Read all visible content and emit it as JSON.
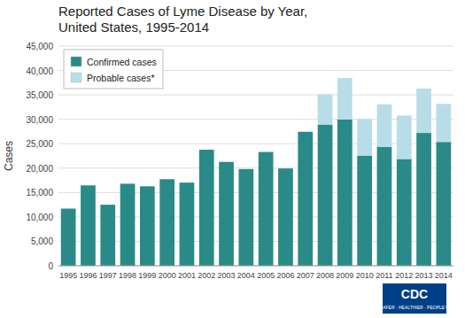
{
  "chart_data": {
    "type": "bar",
    "stacked": true,
    "title": "Reported Cases of Lyme Disease by Year,",
    "subtitle": "United States, 1995-2014",
    "ylabel": "Cases",
    "categories": [
      "1995",
      "1996",
      "1997",
      "1998",
      "1999",
      "2000",
      "2001",
      "2002",
      "2003",
      "2004",
      "2005",
      "2006",
      "2007",
      "2008",
      "2009",
      "2010",
      "2011",
      "2012",
      "2013",
      "2014"
    ],
    "series": [
      {
        "name": "Confirmed cases",
        "color": "#2a8a87",
        "values": [
          11700,
          16461,
          12500,
          16801,
          16273,
          17730,
          17029,
          23763,
          21273,
          19804,
          23305,
          19931,
          27444,
          28921,
          29959,
          22561,
          24364,
          21869,
          27203,
          25359
        ]
      },
      {
        "name": "Probable cases*",
        "color": "#b8dde8",
        "values": [
          0,
          0,
          0,
          0,
          0,
          0,
          0,
          0,
          0,
          0,
          0,
          0,
          0,
          6200,
          8500,
          7500,
          8700,
          8900,
          9100,
          7800
        ]
      }
    ],
    "ylim": [
      0,
      45000
    ],
    "yticks": [
      0,
      {
        "value": 5000,
        "label": "5,000"
      },
      {
        "value": 10000,
        "label": "10,000"
      },
      {
        "value": 15000,
        "label": "15,000"
      },
      {
        "value": 20000,
        "label": "20,000"
      },
      {
        "value": 25000,
        "label": "25,000"
      },
      {
        "value": 30000,
        "label": "30,000"
      },
      {
        "value": 35000,
        "label": "35,000"
      },
      {
        "value": 40000,
        "label": "40,000"
      },
      {
        "value": 45000,
        "label": "45,000"
      }
    ],
    "grid": true,
    "legend": "upper left",
    "annotations": [
      "CDC",
      "SAFER · HEALTHIER · PEOPLE™"
    ]
  }
}
